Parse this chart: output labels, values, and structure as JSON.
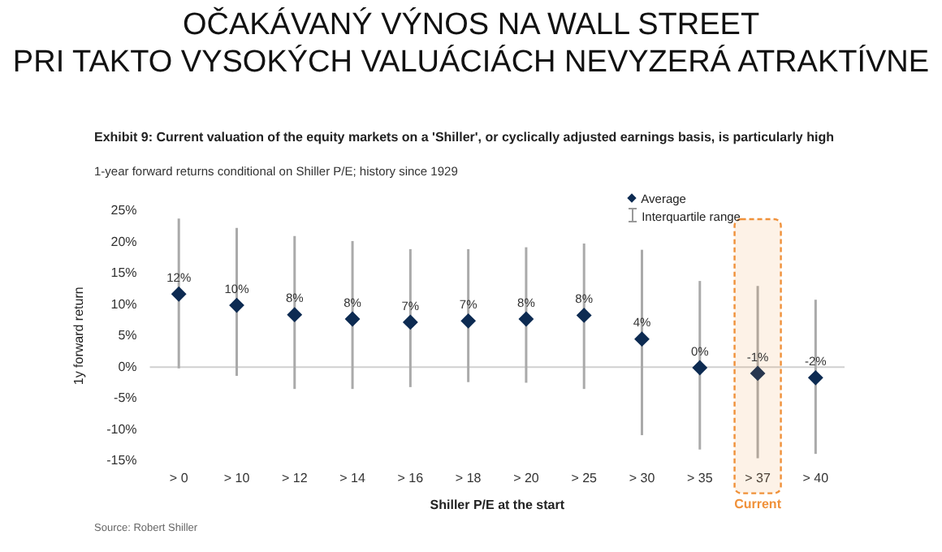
{
  "chart_data": {
    "type": "scatter",
    "title": "OČAKÁVANÝ VÝNOS NA WALL STREET\nPRI TAKTO VYSOKÝCH VALUÁCIÁCH NEVYZERÁ ATRAKTÍVNE",
    "subtitle": "Exhibit 9: Current valuation of the equity markets on a 'Shiller', or cyclically adjusted earnings basis, is particularly high",
    "annotations": [
      "1-year forward returns conditional on Shiller P/E; history since 1929",
      "Interquartile range",
      "Source: Robert Shiller"
    ],
    "bands": [
      {
        "axis": "x",
        "from": "> 37",
        "to": "> 37",
        "label": "Current",
        "color": "#f0913a"
      }
    ],
    "xlabel": "Shiller P/E at the start",
    "ylabel": "1y forward return",
    "categories": [
      "> 0",
      "> 10",
      "> 12",
      "> 14",
      "> 16",
      "> 18",
      "> 20",
      "> 25",
      "> 30",
      "> 35",
      "> 37",
      "> 40"
    ],
    "series": [
      {
        "name": "Average",
        "color": "#0d2b52",
        "values": [
          11.7,
          9.9,
          8.4,
          7.7,
          7.2,
          7.4,
          7.7,
          8.3,
          4.5,
          -0.1,
          -1.0,
          -1.7
        ],
        "value_labels": [
          "12%",
          "10%",
          "8%",
          "8%",
          "7%",
          "7%",
          "8%",
          "8%",
          "4%",
          "0%",
          "-1%",
          "-2%"
        ],
        "errors": [
          [
            -0.2,
            23.8
          ],
          [
            -1.4,
            22.3
          ],
          [
            -3.5,
            21.0
          ],
          [
            -3.5,
            20.2
          ],
          [
            -3.2,
            18.9
          ],
          [
            -2.4,
            18.9
          ],
          [
            -2.5,
            19.2
          ],
          [
            -3.5,
            19.8
          ],
          [
            -10.9,
            18.8
          ],
          [
            -13.2,
            13.8
          ],
          [
            -14.6,
            13.0
          ],
          [
            -13.9,
            10.8
          ]
        ]
      }
    ],
    "ylim": [
      -15,
      25
    ],
    "yticks": [
      {
        "value": -15,
        "label": "-15%"
      },
      {
        "value": -10,
        "label": "-10%"
      },
      {
        "value": -5,
        "label": "-5%"
      },
      {
        "value": 0,
        "label": "0%"
      },
      {
        "value": 5,
        "label": "5%"
      },
      {
        "value": 10,
        "label": "10%"
      },
      {
        "value": 15,
        "label": "15%"
      },
      {
        "value": 20,
        "label": "20%"
      },
      {
        "value": 25,
        "label": "25%"
      }
    ],
    "ref_lines": [
      {
        "axis": "y",
        "value": 0,
        "color": "#d0d0d0"
      }
    ],
    "marker": "diamond",
    "grid": false,
    "legend": "top right"
  }
}
